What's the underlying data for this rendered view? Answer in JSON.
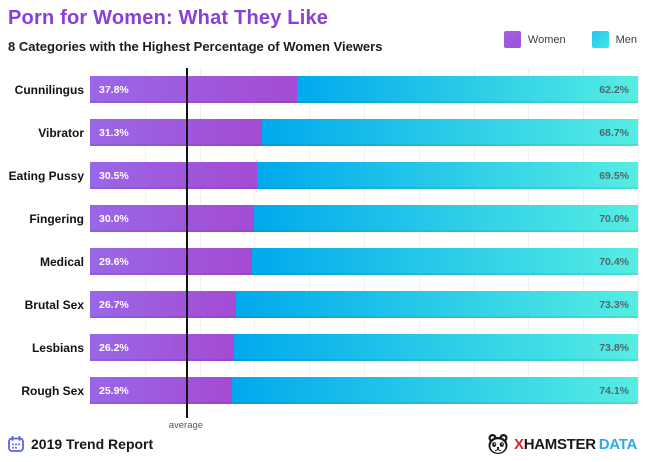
{
  "header": {
    "title": "Porn for Women: What They Like",
    "subtitle": "8 Categories with the Highest Percentage of Women Viewers"
  },
  "legend": {
    "women": "Women",
    "men": "Men"
  },
  "colors": {
    "title_purple": "#8b3fd6",
    "women_gradient_start": "#9a67e8",
    "women_gradient_end": "#a44bd3",
    "men_gradient_start": "#00a9ed",
    "men_gradient_end": "#55ede3",
    "women_value_label": "#ffffff",
    "men_value_label": "#4f6a6d",
    "average_line": "#111111",
    "calendar_icon": "#5b5ff0",
    "brand_x_red": "#d5242a",
    "brand_data_blue": "#2aa9f1"
  },
  "chart_data": {
    "type": "bar",
    "orientation": "horizontal-stacked",
    "title": "Porn for Women: What They Like",
    "subtitle": "8 Categories with the Highest Percentage of Women Viewers",
    "categories": [
      "Cunnilingus",
      "Vibrator",
      "Eating Pussy",
      "Fingering",
      "Medical",
      "Brutal Sex",
      "Lesbians",
      "Rough Sex"
    ],
    "series": [
      {
        "name": "Women",
        "values": [
          37.8,
          31.3,
          30.5,
          30.0,
          29.6,
          26.7,
          26.2,
          25.9
        ]
      },
      {
        "name": "Men",
        "values": [
          62.2,
          68.7,
          69.5,
          70.0,
          70.4,
          73.3,
          73.8,
          74.1
        ]
      }
    ],
    "value_labels": {
      "women": [
        "37.8%",
        "31.3%",
        "30.5%",
        "30.0%",
        "29.6%",
        "26.7%",
        "26.2%",
        "25.9%"
      ],
      "men": [
        "62.2%",
        "68.7%",
        "69.5%",
        "70.0%",
        "70.4%",
        "73.3%",
        "73.8%",
        "74.1%"
      ]
    },
    "xlim": [
      0,
      100
    ],
    "grid": "vertical gridlines every 10%",
    "legend_position": "top-right",
    "annotations": {
      "average_label": "average",
      "average_line_position_pct": 17.5
    }
  },
  "footer": {
    "report_label": "2019 Trend Report",
    "brand": {
      "x": "X",
      "hamster": "HAMSTER",
      "data": "DATA"
    }
  }
}
